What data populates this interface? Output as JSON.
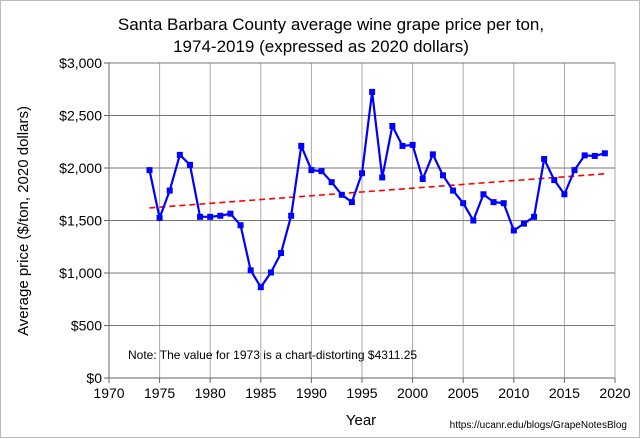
{
  "chart_data": {
    "type": "line",
    "title": "Santa Barbara County average wine grape price per ton,",
    "subtitle": "1974-2019 (expressed as 2020 dollars)",
    "xlabel": "Year",
    "ylabel": "Average price ($/ton, 2020 dollars)",
    "xlim": [
      1970,
      2020
    ],
    "ylim": [
      0,
      3000
    ],
    "x_ticks": [
      "1970",
      "1975",
      "1980",
      "1985",
      "1990",
      "1995",
      "2000",
      "2005",
      "2010",
      "2015",
      "2020"
    ],
    "y_ticks": [
      "$0",
      "$500",
      "$1,000",
      "$1,500",
      "$2,000",
      "$2,500",
      "$3,000"
    ],
    "grid": true,
    "annotation": "Note: The value for 1973 is a chart-distorting $4311.25",
    "source": "https://ucanr.edu/blogs/GrapeNotesBlog",
    "series": [
      {
        "color": "#0000ff",
        "marker": "square",
        "x": [
          1974,
          1975,
          1976,
          1977,
          1978,
          1979,
          1980,
          1981,
          1982,
          1983,
          1984,
          1985,
          1986,
          1987,
          1988,
          1989,
          1990,
          1991,
          1992,
          1993,
          1994,
          1995,
          1996,
          1997,
          1998,
          1999,
          2000,
          2001,
          2002,
          2003,
          2004,
          2005,
          2006,
          2007,
          2008,
          2009,
          2010,
          2011,
          2012,
          2013,
          2014,
          2015,
          2016,
          2017,
          2018,
          2019
        ],
        "values": [
          1980,
          1525,
          1785,
          2125,
          2030,
          1535,
          1535,
          1545,
          1565,
          1455,
          1025,
          865,
          1005,
          1190,
          1545,
          2210,
          1980,
          1970,
          1865,
          1745,
          1675,
          1950,
          2725,
          1910,
          2400,
          2210,
          2220,
          1895,
          2130,
          1930,
          1785,
          1665,
          1500,
          1750,
          1675,
          1665,
          1405,
          1470,
          1535,
          2085,
          1885,
          1750,
          1980,
          2120,
          2115,
          2140
        ]
      },
      {
        "color": "#ff0000",
        "style": "dashed",
        "type": "trendline",
        "x": [
          1974,
          2019
        ],
        "values": [
          1620,
          1945
        ]
      }
    ]
  }
}
